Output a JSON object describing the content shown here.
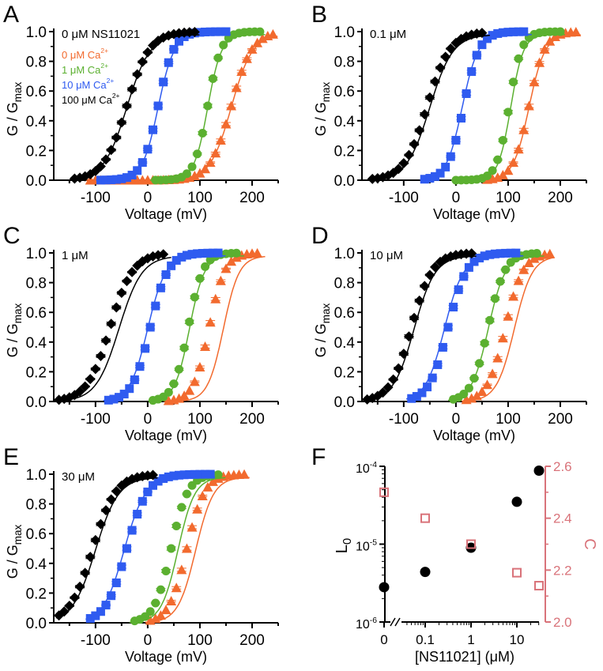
{
  "colors": {
    "black": "#000000",
    "orange": "#f26a2e",
    "green": "#5bb030",
    "blue": "#2f5bf0",
    "pink": "#d9737a"
  },
  "chart_data": [
    {
      "panel": "A",
      "type": "scatter",
      "annotation": "0 μM NS11021",
      "xlabel": "Voltage (mV)",
      "ylabel": "G / Gmax",
      "xlim": [
        -180,
        250
      ],
      "ylim": [
        0,
        1
      ],
      "xticks": [
        -100,
        0,
        100,
        200
      ],
      "yticks": [
        "0.0",
        "0.2",
        "0.4",
        "0.6",
        "0.8",
        "1.0"
      ],
      "legend": [
        "0 μM Ca2+",
        "1 μM Ca2+",
        "10 μM Ca2+",
        "100 μM Ca2+"
      ],
      "series": [
        {
          "name": "0 μM Ca2+",
          "color": "orange",
          "marker": "triangle",
          "v_half": 160,
          "slope": 20,
          "v_range": [
            -110,
            245
          ],
          "fit_v_half": 160
        },
        {
          "name": "1 μM Ca2+",
          "color": "green",
          "marker": "circle",
          "v_half": 115,
          "slope": 13,
          "v_range": [
            15,
            215
          ],
          "fit_v_half": 115
        },
        {
          "name": "10 μM Ca2+",
          "color": "blue",
          "marker": "square",
          "v_half": 20,
          "slope": 15,
          "v_range": [
            -90,
            150
          ],
          "fit_v_half": 20
        },
        {
          "name": "100 μM Ca2+",
          "color": "black",
          "marker": "diamond",
          "v_half": -40,
          "slope": 22,
          "v_range": [
            -140,
            90
          ],
          "fit_v_half": -40
        }
      ]
    },
    {
      "panel": "B",
      "type": "scatter",
      "annotation": "0.1 μM",
      "xlabel": "Voltage (mV)",
      "ylabel": "G / Gmax",
      "xlim": [
        -180,
        250
      ],
      "ylim": [
        0,
        1
      ],
      "xticks": [
        -100,
        0,
        100,
        200
      ],
      "yticks": [
        "0.0",
        "0.2",
        "0.4",
        "0.6",
        "0.8",
        "1.0"
      ],
      "series": [
        {
          "name": "0 μM Ca2+",
          "color": "orange",
          "marker": "triangle",
          "v_half": 140,
          "slope": 15,
          "v_range": [
            60,
            230
          ],
          "fit_v_half": 140
        },
        {
          "name": "1 μM Ca2+",
          "color": "green",
          "marker": "circle",
          "v_half": 102,
          "slope": 12,
          "v_range": [
            0,
            200
          ],
          "fit_v_half": 105
        },
        {
          "name": "10 μM Ca2+",
          "color": "blue",
          "marker": "square",
          "v_half": 15,
          "slope": 15,
          "v_range": [
            -60,
            135
          ],
          "fit_v_half": 12
        },
        {
          "name": "100 μM Ca2+",
          "color": "black",
          "marker": "diamond",
          "v_half": -55,
          "slope": 22,
          "v_range": [
            -160,
            55
          ],
          "fit_v_half": -50
        }
      ]
    },
    {
      "panel": "C",
      "type": "scatter",
      "annotation": "1 μM",
      "xlabel": "Voltage (mV)",
      "ylabel": "G / Gmax",
      "xlim": [
        -180,
        250
      ],
      "ylim": [
        0,
        1
      ],
      "xticks": [
        -100,
        0,
        100,
        200
      ],
      "yticks": [
        "0.0",
        "0.2",
        "0.4",
        "0.6",
        "0.8",
        "1.0"
      ],
      "series": [
        {
          "name": "0 μM Ca2+",
          "color": "orange",
          "marker": "triangle",
          "v_half": 118,
          "slope": 15,
          "v_range": [
            40,
            215
          ],
          "fit_v_half": 145
        },
        {
          "name": "1 μM Ca2+",
          "color": "green",
          "marker": "circle",
          "v_half": 78,
          "slope": 14,
          "v_range": [
            10,
            175
          ],
          "fit_v_half": 80
        },
        {
          "name": "10 μM Ca2+",
          "color": "blue",
          "marker": "square",
          "v_half": 5,
          "slope": 17,
          "v_range": [
            -75,
            140
          ],
          "fit_v_half": 0
        },
        {
          "name": "100 μM Ca2+",
          "color": "black",
          "marker": "diamond",
          "v_half": -72,
          "slope": 22,
          "v_range": [
            -170,
            35
          ],
          "fit_v_half": -55
        }
      ]
    },
    {
      "panel": "D",
      "type": "scatter",
      "annotation": "10 μM",
      "xlabel": "Voltage (mV)",
      "ylabel": "G / Gmax",
      "xlim": [
        -180,
        250
      ],
      "ylim": [
        0,
        1
      ],
      "xticks": [
        -100,
        0,
        100,
        200
      ],
      "yticks": [
        "0.0",
        "0.2",
        "0.4",
        "0.6",
        "0.8",
        "1.0"
      ],
      "series": [
        {
          "name": "0 μM Ca2+",
          "color": "orange",
          "marker": "triangle",
          "v_half": 95,
          "slope": 17,
          "v_range": [
            20,
            180
          ],
          "fit_v_half": 112
        },
        {
          "name": "1 μM Ca2+",
          "color": "green",
          "marker": "circle",
          "v_half": 62,
          "slope": 16,
          "v_range": [
            -5,
            160
          ],
          "fit_v_half": 62
        },
        {
          "name": "10 μM Ca2+",
          "color": "blue",
          "marker": "square",
          "v_half": -15,
          "slope": 18,
          "v_range": [
            -85,
            120
          ],
          "fit_v_half": -22
        },
        {
          "name": "100 μM Ca2+",
          "color": "black",
          "marker": "diamond",
          "v_half": -85,
          "slope": 20,
          "v_range": [
            -170,
            30
          ],
          "fit_v_half": -80
        }
      ]
    },
    {
      "panel": "E",
      "type": "scatter",
      "annotation": "30 μM",
      "xlabel": "Voltage (mV)",
      "ylabel": "G / Gmax",
      "xlim": [
        -180,
        250
      ],
      "ylim": [
        0,
        1
      ],
      "xticks": [
        -100,
        0,
        100,
        200
      ],
      "yticks": [
        "0.0",
        "0.2",
        "0.4",
        "0.6",
        "0.8",
        "1.0"
      ],
      "series": [
        {
          "name": "0 μM Ca2+",
          "color": "orange",
          "marker": "triangle",
          "v_half": 75,
          "slope": 17,
          "v_range": [
            5,
            185
          ],
          "fit_v_half": 92
        },
        {
          "name": "1 μM Ca2+",
          "color": "green",
          "marker": "circle",
          "v_half": 45,
          "slope": 16,
          "v_range": [
            -25,
            140
          ],
          "fit_v_half": 58
        },
        {
          "name": "10 μM Ca2+",
          "color": "blue",
          "marker": "square",
          "v_half": -40,
          "slope": 20,
          "v_range": [
            -110,
            120
          ],
          "fit_v_half": -45
        },
        {
          "name": "100 μM Ca2+",
          "color": "black",
          "marker": "diamond",
          "v_half": -105,
          "slope": 22,
          "v_range": [
            -170,
            10
          ],
          "fit_v_half": -100
        }
      ]
    },
    {
      "panel": "F",
      "type": "scatter",
      "xlabel": "[NS11021] (μM)",
      "ylabel_left": "L0",
      "ylabel_right": "C",
      "xtick_labels": [
        "0",
        "0.1",
        "1",
        "10"
      ],
      "yticks_left": [
        "10-4",
        "10-5",
        "10-6"
      ],
      "ylim_left": [
        1e-06,
        0.0001
      ],
      "yticks_right": [
        "2.0",
        "2.2",
        "2.4",
        "2.6"
      ],
      "ylim_right": [
        2.0,
        2.6
      ],
      "x": [
        0,
        0.1,
        1,
        10,
        30
      ],
      "series": [
        {
          "name": "L0",
          "color": "black",
          "marker": "filled-circle",
          "axis": "left",
          "values": [
            2.8e-06,
            4.4e-06,
            9e-06,
            3.5e-05,
            8.8e-05
          ]
        },
        {
          "name": "C",
          "color": "pink",
          "marker": "open-square",
          "axis": "right",
          "values": [
            2.5,
            2.4,
            2.3,
            2.19,
            2.14
          ]
        }
      ]
    }
  ]
}
